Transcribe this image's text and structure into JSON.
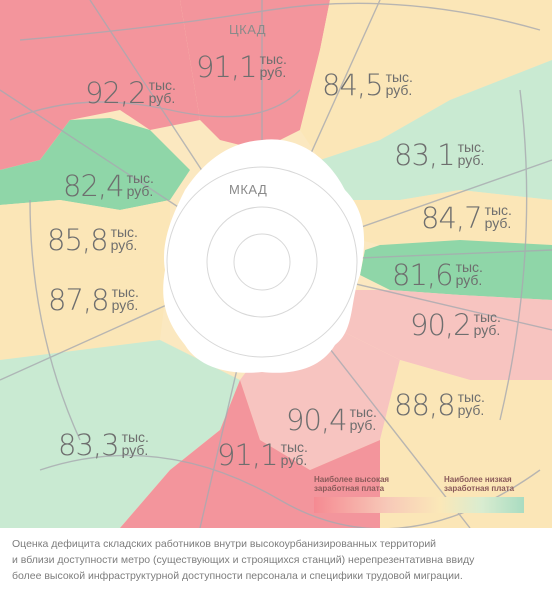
{
  "ring_labels": {
    "ckad": "ЦКАД",
    "mkad": "МКАД"
  },
  "zones": [
    {
      "value": "92,2",
      "unit1": "тыс.",
      "unit2": "руб."
    },
    {
      "value": "91,1",
      "unit1": "тыс.",
      "unit2": "руб."
    },
    {
      "value": "84,5",
      "unit1": "тыс.",
      "unit2": "руб."
    },
    {
      "value": "83,1",
      "unit1": "тыс.",
      "unit2": "руб."
    },
    {
      "value": "82,4",
      "unit1": "тыс.",
      "unit2": "руб."
    },
    {
      "value": "84,7",
      "unit1": "тыс.",
      "unit2": "руб."
    },
    {
      "value": "85,8",
      "unit1": "тыс.",
      "unit2": "руб."
    },
    {
      "value": "81,6",
      "unit1": "тыс.",
      "unit2": "руб."
    },
    {
      "value": "87,8",
      "unit1": "тыс.",
      "unit2": "руб."
    },
    {
      "value": "90,2",
      "unit1": "тыс.",
      "unit2": "руб."
    },
    {
      "value": "90,4",
      "unit1": "тыс.",
      "unit2": "руб."
    },
    {
      "value": "88,8",
      "unit1": "тыс.",
      "unit2": "руб."
    },
    {
      "value": "83,3",
      "unit1": "тыс.",
      "unit2": "руб."
    },
    {
      "value": "91,1",
      "unit1": "тыс.",
      "unit2": "руб."
    }
  ],
  "legend": {
    "high_line1": "Наиболее высокая",
    "high_line2": "заработная плата",
    "low_line1": "Наиболее низкая",
    "low_line2": "заработная плата",
    "high_color": "#f58a92",
    "low_color": "#a9dcc1"
  },
  "colors": {
    "red": "#f3959c",
    "pink": "#f7c4c0",
    "cream": "#fbe6b7",
    "lightgreen": "#c9ead2",
    "green": "#8fd6a8",
    "roads": "#a8aab0",
    "city": "#ffffff"
  },
  "caption": {
    "line1": "Оценка дефицита складских работников внутри высокоурбанизированных территорий",
    "line2": "и вблизи доступности метро (существующих и строящихся станций) нерепрезентативна ввиду",
    "line3": "более высокой инфраструктурной доступности персонала и специфики трудовой миграции."
  }
}
